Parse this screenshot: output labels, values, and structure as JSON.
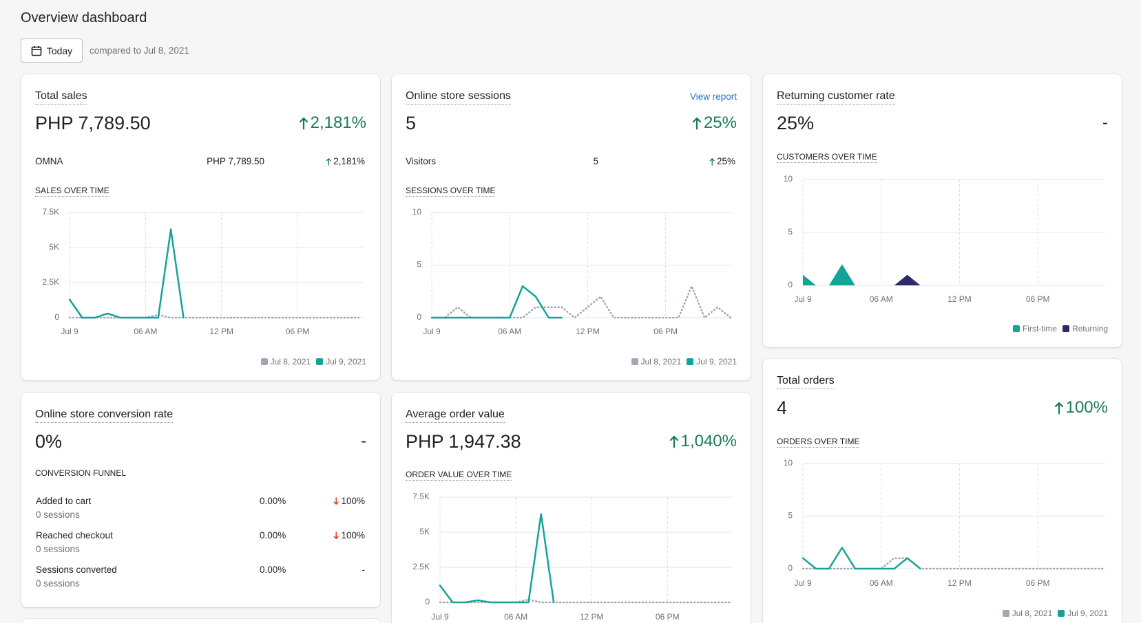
{
  "header": {
    "title": "Overview dashboard",
    "date_button": "Today",
    "comparison": "compared to Jul 8, 2021"
  },
  "cards": [
    {
      "title": "Total sales",
      "value": "PHP 7,789.50",
      "change": "2,181%",
      "trend": "up",
      "rows": [
        {
          "label": "OMNA",
          "value": "PHP 7,789.50",
          "change": "2,181%",
          "trend": "up"
        }
      ],
      "chart_title": "SALES OVER TIME",
      "chart_data": {
        "type": "line",
        "x": [
          0,
          1,
          2,
          3,
          4,
          5,
          6,
          7,
          8,
          9,
          10,
          11,
          12,
          13,
          14,
          15,
          16,
          17,
          18,
          19,
          20,
          21,
          22,
          23
        ],
        "xlim": [
          0,
          23
        ],
        "xticks": [
          {
            "value": 0,
            "label": "Jul 9"
          },
          {
            "value": 6,
            "label": "06 AM"
          },
          {
            "value": 12,
            "label": "12 PM"
          },
          {
            "value": 18,
            "label": "06 PM"
          }
        ],
        "ylim": [
          0,
          7500
        ],
        "yticks": [
          0,
          {
            "value": 2500,
            "label": "2.5K"
          },
          {
            "value": 5000,
            "label": "5K"
          },
          {
            "value": 7500,
            "label": "7.5K"
          }
        ],
        "grid": true,
        "series": [
          {
            "name": "Jul 8, 2021",
            "color": "#a1a8b3",
            "dashed": true,
            "values": [
              0,
              0,
              0,
              0,
              0,
              0,
              0,
              200,
              0,
              0,
              0,
              0,
              0,
              0,
              0,
              0,
              0,
              0,
              0,
              0,
              0,
              0,
              0,
              0
            ]
          },
          {
            "name": "Jul 9, 2021",
            "color": "#13a399",
            "values": [
              1300,
              0,
              0,
              300,
              0,
              0,
              0,
              0,
              6300,
              0,
              null,
              null,
              null,
              null,
              null,
              null,
              null,
              null,
              null,
              null,
              null,
              null,
              null,
              null
            ]
          }
        ]
      }
    },
    {
      "title": "Online store sessions",
      "link": "View report",
      "value": "5",
      "change": "25%",
      "trend": "up",
      "rows": [
        {
          "label": "Visitors",
          "value": "5",
          "change": "25%",
          "trend": "up"
        }
      ],
      "chart_title": "SESSIONS OVER TIME",
      "chart_data": {
        "type": "line",
        "x": [
          0,
          1,
          2,
          3,
          4,
          5,
          6,
          7,
          8,
          9,
          10,
          11,
          12,
          13,
          14,
          15,
          16,
          17,
          18,
          19,
          20,
          21,
          22,
          23
        ],
        "xlim": [
          0,
          23
        ],
        "xticks": [
          {
            "value": 0,
            "label": "Jul 9"
          },
          {
            "value": 6,
            "label": "06 AM"
          },
          {
            "value": 12,
            "label": "12 PM"
          },
          {
            "value": 18,
            "label": "06 PM"
          }
        ],
        "ylim": [
          0,
          10
        ],
        "yticks": [
          0,
          5,
          10
        ],
        "grid": true,
        "series": [
          {
            "name": "Jul 8, 2021",
            "color": "#a1a8b3",
            "dashed": true,
            "values": [
              0,
              0,
              1,
              0,
              0,
              0,
              0,
              0,
              1,
              1,
              1,
              0,
              1,
              2,
              0,
              0,
              0,
              0,
              0,
              0,
              3,
              0,
              1,
              0
            ]
          },
          {
            "name": "Jul 9, 2021",
            "color": "#13a399",
            "values": [
              0,
              0,
              0,
              0,
              0,
              0,
              0,
              3,
              2,
              0,
              0,
              null,
              null,
              null,
              null,
              null,
              null,
              null,
              null,
              null,
              null,
              null,
              null,
              null
            ]
          }
        ]
      }
    },
    {
      "title": "Returning customer rate",
      "value": "25%",
      "change": "-",
      "chart_title": "CUSTOMERS OVER TIME",
      "chart_data": {
        "type": "area",
        "x": [
          0,
          1,
          2,
          3,
          4,
          5,
          6,
          7,
          8,
          9,
          10,
          11,
          12,
          13,
          14,
          15,
          16,
          17,
          18,
          19,
          20,
          21,
          22,
          23
        ],
        "xlim": [
          0,
          23
        ],
        "xticks": [
          {
            "value": 0,
            "label": "Jul 9"
          },
          {
            "value": 6,
            "label": "06 AM"
          },
          {
            "value": 12,
            "label": "12 PM"
          },
          {
            "value": 18,
            "label": "06 PM"
          }
        ],
        "ylim": [
          0,
          10
        ],
        "yticks": [
          0,
          5,
          10
        ],
        "grid": true,
        "series": [
          {
            "name": "First-time",
            "color": "#13a399",
            "values": [
              1,
              0,
              0,
              2,
              0,
              0,
              0,
              0,
              0,
              0,
              null,
              null,
              null,
              null,
              null,
              null,
              null,
              null,
              null,
              null,
              null,
              null,
              null,
              null
            ]
          },
          {
            "name": "Returning",
            "color": "#2c2a6e",
            "values": [
              0,
              0,
              0,
              0,
              0,
              0,
              0,
              0,
              1,
              0,
              null,
              null,
              null,
              null,
              null,
              null,
              null,
              null,
              null,
              null,
              null,
              null,
              null,
              null
            ]
          }
        ]
      }
    },
    {
      "title": "Total orders",
      "value": "4",
      "change": "100%",
      "trend": "up",
      "chart_title": "ORDERS OVER TIME",
      "chart_data": {
        "type": "line",
        "x": [
          0,
          1,
          2,
          3,
          4,
          5,
          6,
          7,
          8,
          9,
          10,
          11,
          12,
          13,
          14,
          15,
          16,
          17,
          18,
          19,
          20,
          21,
          22,
          23
        ],
        "xlim": [
          0,
          23
        ],
        "xticks": [
          {
            "value": 0,
            "label": "Jul 9"
          },
          {
            "value": 6,
            "label": "06 AM"
          },
          {
            "value": 12,
            "label": "12 PM"
          },
          {
            "value": 18,
            "label": "06 PM"
          }
        ],
        "ylim": [
          0,
          10
        ],
        "yticks": [
          0,
          5,
          10
        ],
        "grid": true,
        "series": [
          {
            "name": "Jul 8, 2021",
            "color": "#a1a8b3",
            "dashed": true,
            "values": [
              0,
              0,
              0,
              0,
              0,
              0,
              0,
              1,
              1,
              0,
              0,
              0,
              0,
              0,
              0,
              0,
              0,
              0,
              0,
              0,
              0,
              0,
              0,
              0
            ]
          },
          {
            "name": "Jul 9, 2021",
            "color": "#13a399",
            "values": [
              1,
              0,
              0,
              2,
              0,
              0,
              0,
              0,
              1,
              0,
              null,
              null,
              null,
              null,
              null,
              null,
              null,
              null,
              null,
              null,
              null,
              null,
              null,
              null
            ]
          }
        ]
      }
    },
    {
      "title": "Online store conversion rate",
      "value": "0%",
      "change": "-",
      "funnel_title": "CONVERSION FUNNEL",
      "funnel": [
        {
          "label": "Added to cart",
          "sessions": "0 sessions",
          "rate": "0.00%",
          "change": "100%",
          "trend": "down"
        },
        {
          "label": "Reached checkout",
          "sessions": "0 sessions",
          "rate": "0.00%",
          "change": "100%",
          "trend": "down"
        },
        {
          "label": "Sessions converted",
          "sessions": "0 sessions",
          "rate": "0.00%",
          "change": "-"
        }
      ]
    },
    {
      "title": "Average order value",
      "value": "PHP 1,947.38",
      "change": "1,040%",
      "trend": "up",
      "chart_title": "ORDER VALUE OVER TIME",
      "chart_data": {
        "type": "line",
        "x": [
          0,
          1,
          2,
          3,
          4,
          5,
          6,
          7,
          8,
          9,
          10,
          11,
          12,
          13,
          14,
          15,
          16,
          17,
          18,
          19,
          20,
          21,
          22,
          23
        ],
        "xlim": [
          0,
          23
        ],
        "xticks": [
          {
            "value": 0,
            "label": "Jul 9"
          },
          {
            "value": 6,
            "label": "06 AM"
          },
          {
            "value": 12,
            "label": "12 PM"
          },
          {
            "value": 18,
            "label": "06 PM"
          }
        ],
        "ylim": [
          0,
          7500
        ],
        "yticks": [
          0,
          {
            "value": 2500,
            "label": "2.5K"
          },
          {
            "value": 5000,
            "label": "5K"
          },
          {
            "value": 7500,
            "label": "7.5K"
          }
        ],
        "grid": true,
        "series": [
          {
            "name": "Jul 8, 2021",
            "color": "#a1a8b3",
            "dashed": true,
            "values": [
              0,
              0,
              0,
              0,
              0,
              0,
              0,
              200,
              0,
              0,
              0,
              0,
              0,
              0,
              0,
              0,
              0,
              0,
              0,
              0,
              0,
              0,
              0,
              0
            ]
          },
          {
            "name": "Jul 9, 2021",
            "color": "#13a399",
            "values": [
              1200,
              0,
              0,
              150,
              0,
              0,
              0,
              0,
              6300,
              0,
              null,
              null,
              null,
              null,
              null,
              null,
              null,
              null,
              null,
              null,
              null,
              null,
              null,
              null
            ]
          }
        ]
      }
    }
  ]
}
